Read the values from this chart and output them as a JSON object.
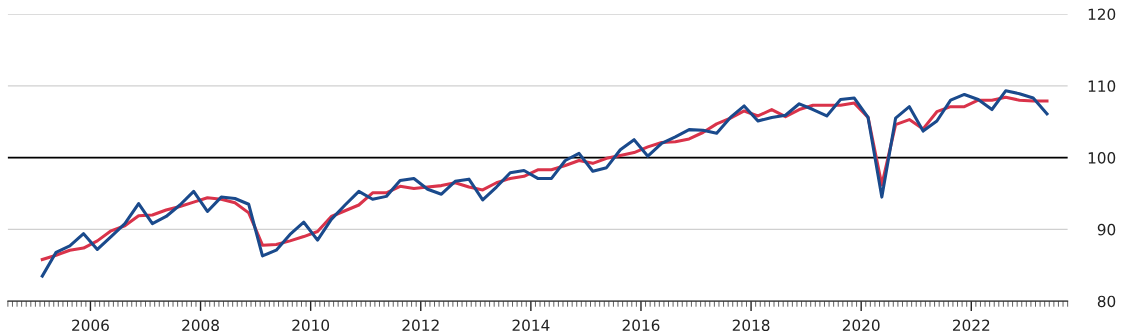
{
  "chart_data": {
    "type": "line",
    "x": [
      2005.125,
      2005.375,
      2005.625,
      2005.875,
      2006.125,
      2006.375,
      2006.625,
      2006.875,
      2007.125,
      2007.375,
      2007.625,
      2007.875,
      2008.125,
      2008.375,
      2008.625,
      2008.875,
      2009.125,
      2009.375,
      2009.625,
      2009.875,
      2010.125,
      2010.375,
      2010.625,
      2010.875,
      2011.125,
      2011.375,
      2011.625,
      2011.875,
      2012.125,
      2012.375,
      2012.625,
      2012.875,
      2013.125,
      2013.375,
      2013.625,
      2013.875,
      2014.125,
      2014.375,
      2014.625,
      2014.875,
      2015.125,
      2015.375,
      2015.625,
      2015.875,
      2016.125,
      2016.375,
      2016.625,
      2016.875,
      2017.125,
      2017.375,
      2017.625,
      2017.875,
      2018.125,
      2018.375,
      2018.625,
      2018.875,
      2019.125,
      2019.375,
      2019.625,
      2019.875,
      2020.125,
      2020.375,
      2020.625,
      2020.875,
      2021.125,
      2021.375,
      2021.625,
      2021.875,
      2022.125,
      2022.375,
      2022.625,
      2022.875,
      2023.125,
      2023.375
    ],
    "series": [
      {
        "color": "#d9334a",
        "values": [
          85.8,
          86.4,
          87.1,
          87.4,
          88.4,
          89.8,
          90.5,
          91.9,
          92.0,
          92.7,
          93.2,
          93.8,
          94.4,
          94.2,
          93.7,
          92.3,
          87.8,
          87.9,
          88.4,
          89.0,
          89.7,
          91.8,
          92.6,
          93.4,
          95.1,
          95.1,
          96.0,
          95.7,
          95.9,
          96.1,
          96.5,
          95.9,
          95.5,
          96.5,
          97.1,
          97.4,
          98.3,
          98.3,
          98.9,
          99.6,
          99.2,
          99.9,
          100.3,
          100.7,
          101.5,
          102.1,
          102.2,
          102.6,
          103.5,
          104.7,
          105.5,
          106.5,
          105.8,
          106.7,
          105.7,
          106.7,
          107.3,
          107.3,
          107.3,
          107.6,
          105.6,
          96.2,
          104.6,
          105.3,
          104.0,
          106.4,
          107.1,
          107.1,
          108.0,
          108.0,
          108.4,
          108.0,
          107.9,
          107.9
        ]
      },
      {
        "color": "#1a4a8c",
        "values": [
          83.5,
          86.8,
          87.7,
          89.4,
          87.2,
          89.0,
          90.8,
          93.6,
          90.8,
          91.8,
          93.4,
          95.3,
          92.5,
          94.5,
          94.3,
          93.5,
          86.3,
          87.1,
          89.3,
          91.0,
          88.5,
          91.4,
          93.4,
          95.3,
          94.2,
          94.6,
          96.8,
          97.1,
          95.6,
          94.9,
          96.7,
          97.0,
          94.1,
          95.9,
          97.9,
          98.2,
          97.1,
          97.1,
          99.6,
          100.6,
          98.1,
          98.6,
          101.1,
          102.5,
          100.2,
          102.0,
          102.9,
          103.9,
          103.8,
          103.4,
          105.6,
          107.2,
          105.1,
          105.6,
          105.9,
          107.5,
          106.7,
          105.8,
          108.1,
          108.3,
          105.6,
          94.5,
          105.5,
          107.1,
          103.7,
          105.1,
          108.0,
          108.8,
          108.1,
          106.7,
          109.3,
          108.9,
          108.3,
          106.1
        ]
      }
    ],
    "xlim": [
      2004.5,
      2023.75
    ],
    "xticks": [
      2006,
      2008,
      2010,
      2012,
      2014,
      2016,
      2018,
      2020,
      2022
    ],
    "ylim": [
      80,
      120
    ],
    "yticks": [
      80,
      90,
      100,
      110,
      120
    ],
    "grid": "y",
    "ref_lines": [
      {
        "axis": "y",
        "value": 100,
        "color": "#000000"
      }
    ]
  }
}
